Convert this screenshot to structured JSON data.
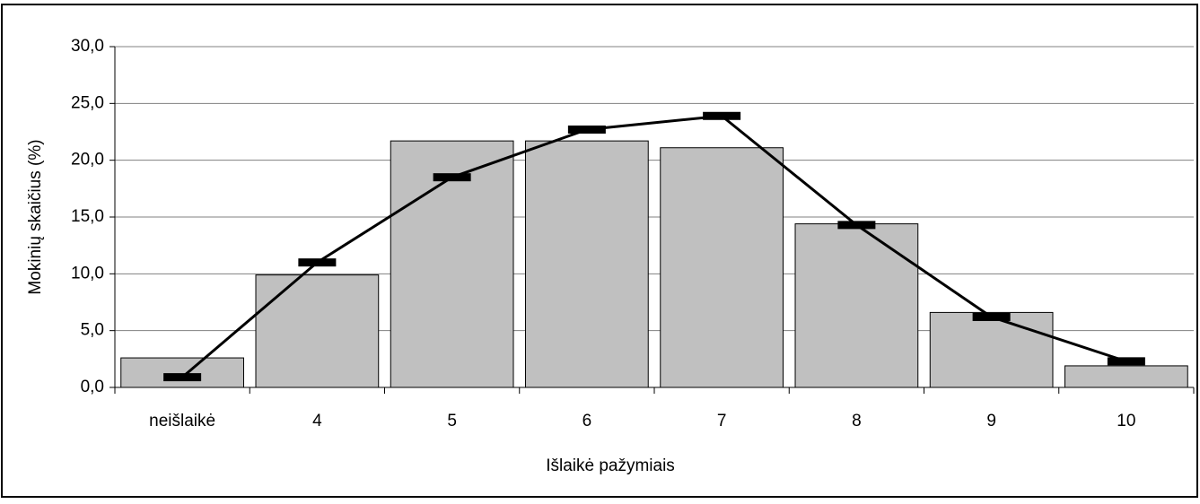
{
  "chart_data": {
    "type": "bar_line",
    "xlabel": "Išlaikė pažymiais",
    "ylabel": "Mokinių skaičius (%)",
    "categories": [
      "neišlaikė",
      "4",
      "5",
      "6",
      "7",
      "8",
      "9",
      "10"
    ],
    "series": [
      {
        "type": "bar",
        "color": "#c0c0c0",
        "values": [
          2.6,
          9.9,
          21.7,
          21.7,
          21.1,
          14.4,
          6.6,
          1.9
        ]
      },
      {
        "type": "line",
        "color": "#000000",
        "values": [
          0.9,
          11.0,
          18.5,
          22.7,
          23.9,
          14.3,
          6.2,
          2.3
        ]
      }
    ],
    "ylim": [
      0,
      30
    ],
    "yticks": [
      {
        "value": 0,
        "label": "0,0"
      },
      {
        "value": 5,
        "label": "5,0"
      },
      {
        "value": 10,
        "label": "10,0"
      },
      {
        "value": 15,
        "label": "15,0"
      },
      {
        "value": 20,
        "label": "20,0"
      },
      {
        "value": 25,
        "label": "25,0"
      },
      {
        "value": 30,
        "label": "30,0"
      }
    ],
    "grid": true
  }
}
